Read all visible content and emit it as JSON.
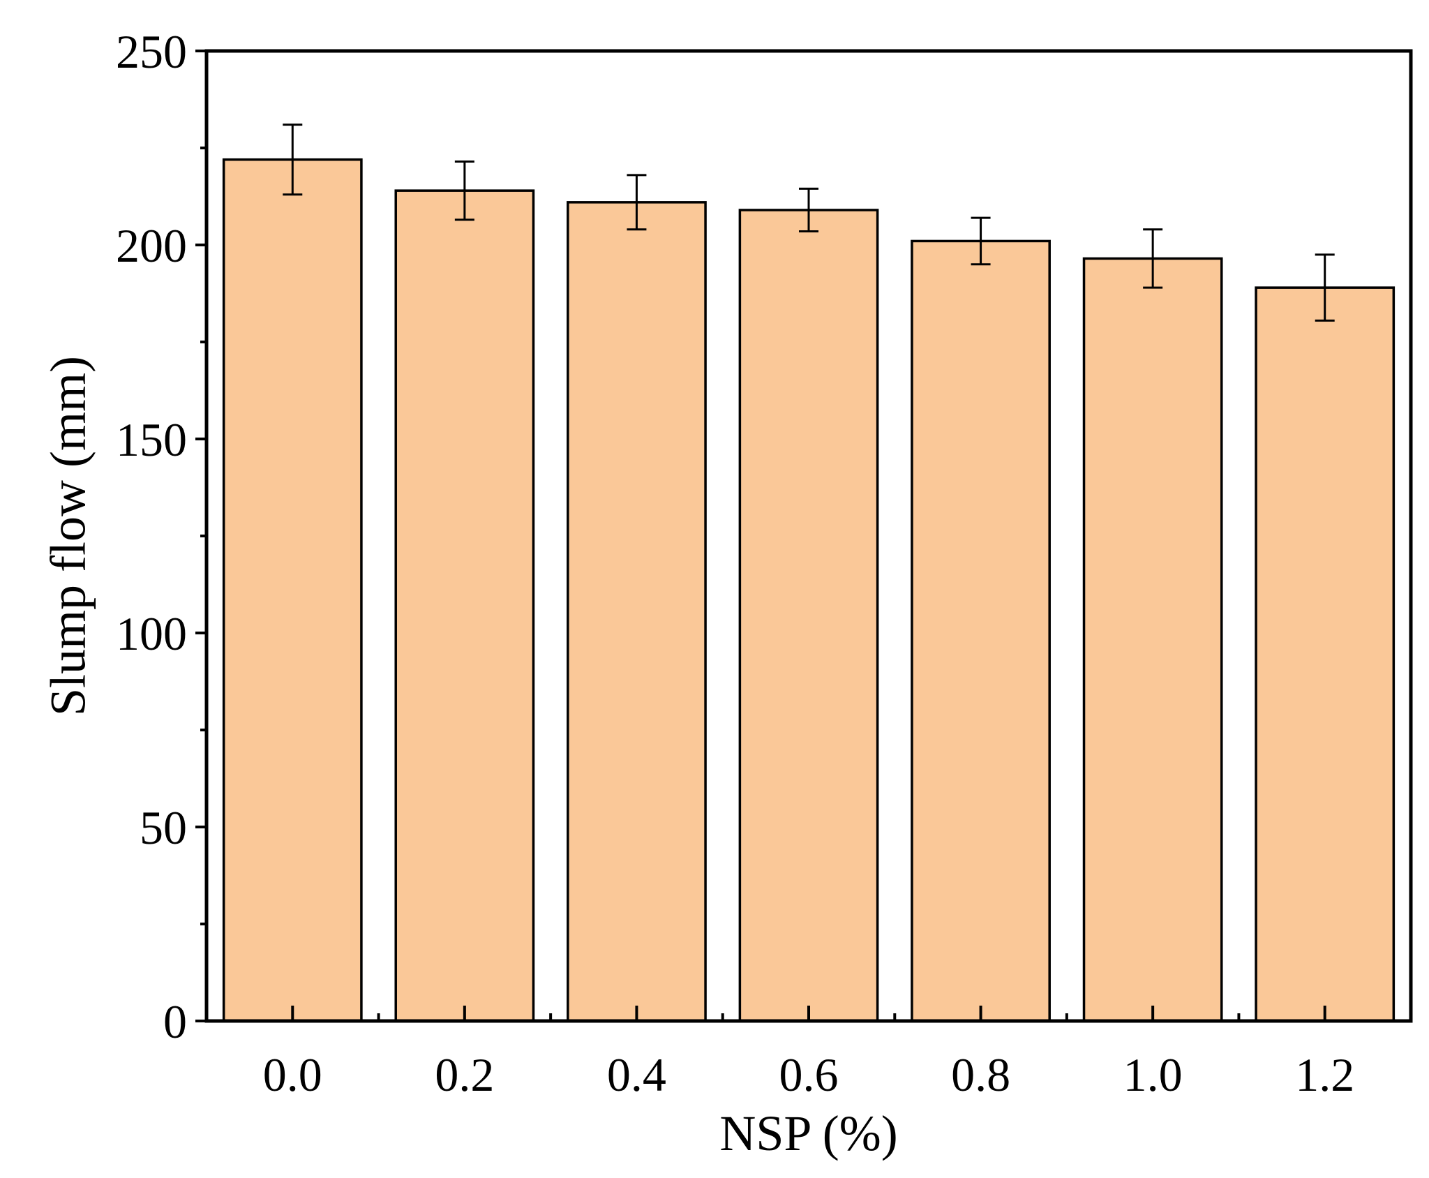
{
  "chart_data": {
    "type": "bar",
    "title": "",
    "xlabel": "NSP (%)",
    "ylabel": "Slump flow (mm)",
    "categories": [
      "0.0",
      "0.2",
      "0.4",
      "0.6",
      "0.8",
      "1.0",
      "1.2"
    ],
    "values": [
      222,
      214,
      211,
      209,
      201,
      196.5,
      189
    ],
    "errors": [
      9,
      7.5,
      7,
      5.5,
      6,
      7.5,
      8.5
    ],
    "ylim": [
      0,
      250
    ],
    "yticks": [
      0,
      50,
      100,
      150,
      200,
      250
    ],
    "yticks_minor": [
      25,
      75,
      125,
      175,
      225
    ],
    "grid": false,
    "legend": "none",
    "colors": {
      "bar_fill": "#FAC898",
      "bar_stroke": "#000000",
      "axis": "#000000"
    }
  }
}
